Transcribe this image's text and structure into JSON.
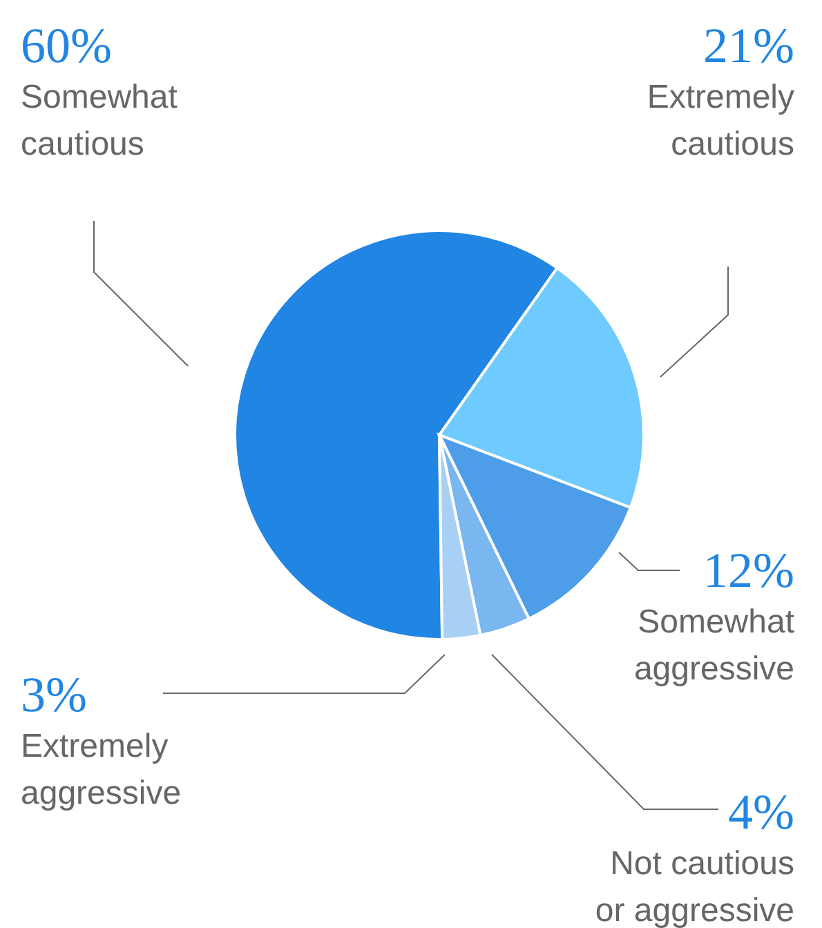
{
  "chart_data": {
    "type": "pie",
    "categories": [
      "Somewhat cautious",
      "Extremely cautious",
      "Somewhat aggressive",
      "Not cautious or aggressive",
      "Extremely aggressive"
    ],
    "values": [
      60,
      21,
      12,
      4,
      3
    ],
    "colors": [
      "#2185e3",
      "#6fcbff",
      "#4d9de8",
      "#7ab6f0",
      "#a8d0f5"
    ],
    "value_labels": [
      "60%",
      "21%",
      "12%",
      "4%",
      "3%"
    ]
  }
}
